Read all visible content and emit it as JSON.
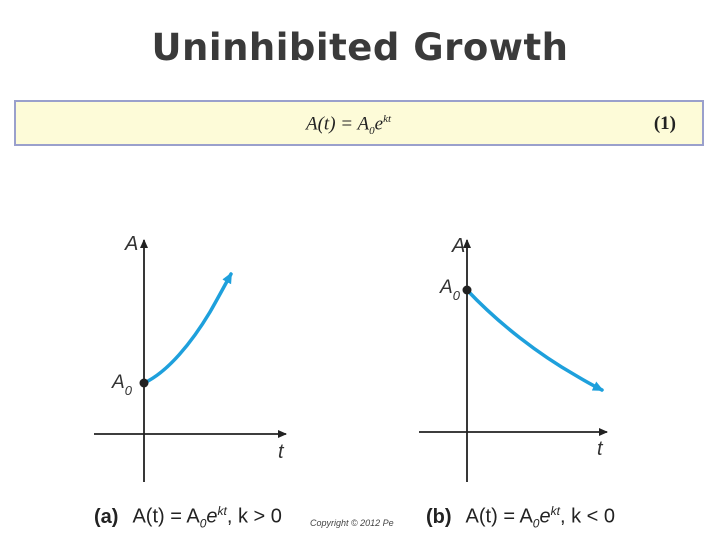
{
  "title": "Uninhibited Growth",
  "formula": {
    "lhs": "A(t) = A",
    "sub": "0",
    "base": "e",
    "exp": "kt",
    "number": "(1)"
  },
  "graph_a": {
    "y_label": "A",
    "x_label": "t",
    "a0_label": "A",
    "a0_sub": "0",
    "caption_tag": "(a)",
    "caption_lhs": "A(t) = A",
    "caption_sub": "0",
    "caption_base": "e",
    "caption_exp": "kt",
    "caption_cond": ", k > 0",
    "curve_color": "#1ea0dc"
  },
  "graph_b": {
    "y_label": "A",
    "x_label": "t",
    "a0_label": "A",
    "a0_sub": "0",
    "caption_tag": "(b)",
    "caption_lhs": "A(t) = A",
    "caption_sub": "0",
    "caption_base": "e",
    "caption_exp": "kt",
    "caption_cond": ", k < 0",
    "curve_color": "#1ea0dc"
  },
  "copyright": "Copyright © 2012 Pe"
}
